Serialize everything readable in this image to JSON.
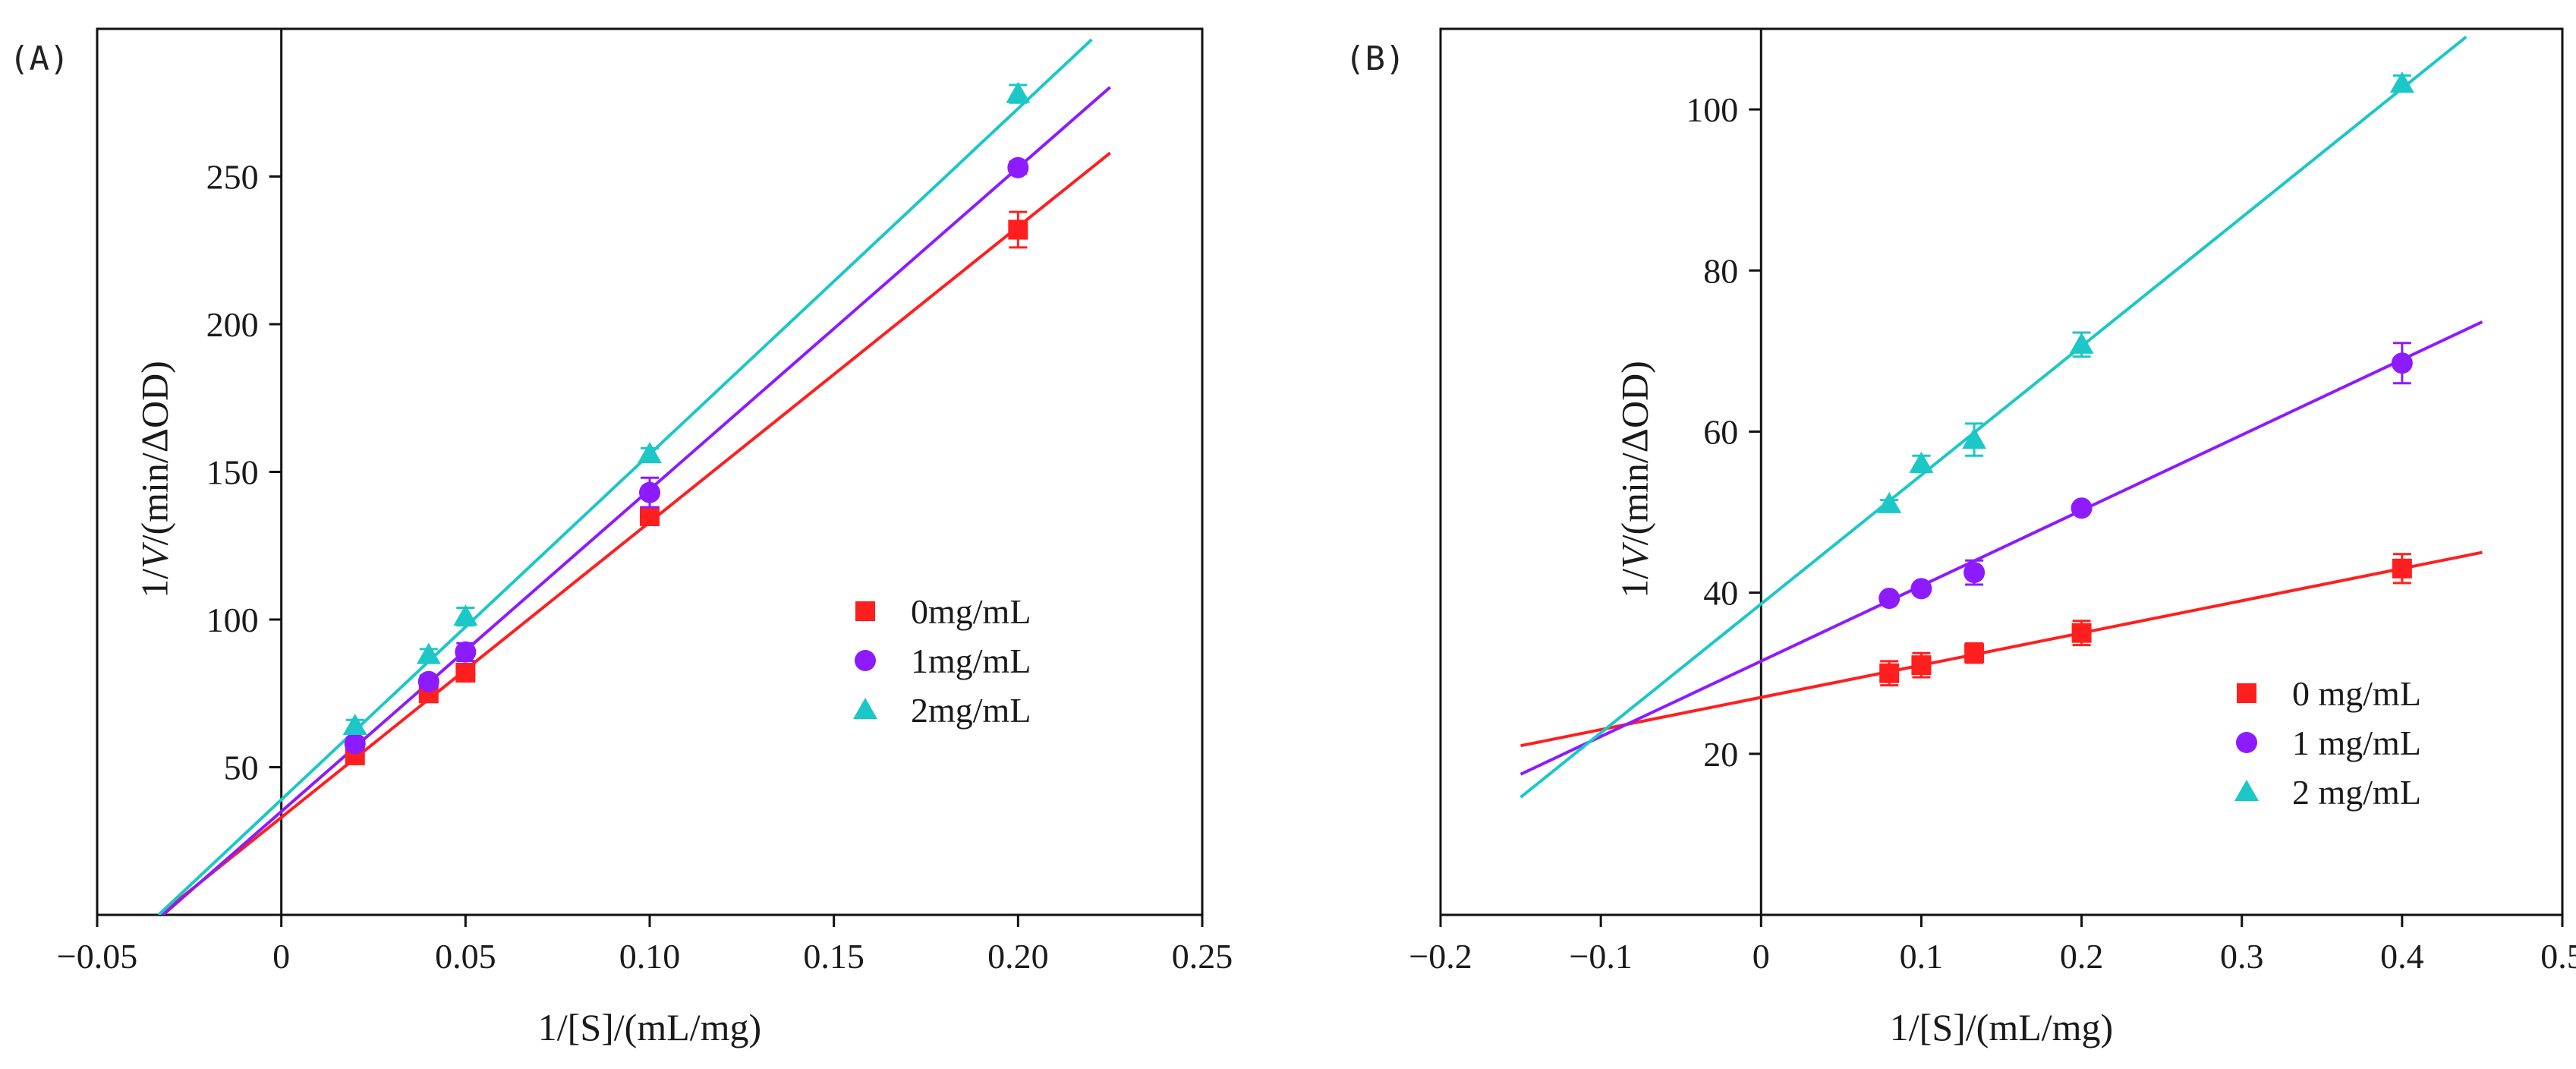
{
  "chart_data": [
    {
      "type": "scatter",
      "panel_label": "(A)",
      "xlabel": "1/[S]/(mL/mg)",
      "ylabel_parts": [
        "1/",
        "V",
        "/(min/ΔOD)"
      ],
      "xlim": [
        -0.05,
        0.25
      ],
      "ylim": [
        0,
        300
      ],
      "xticks": [
        -0.05,
        0,
        0.05,
        0.1,
        0.15,
        0.2,
        0.25
      ],
      "xtick_labels": [
        "−0.05",
        "0",
        "0.05",
        "0.10",
        "0.15",
        "0.20",
        "0.25"
      ],
      "yticks": [
        50,
        100,
        150,
        200,
        250
      ],
      "ytick_labels": [
        "50",
        "100",
        "150",
        "200",
        "250"
      ],
      "x_axis_line_at": 0,
      "legend_position": "right-middle",
      "grid": false,
      "series": [
        {
          "name": "0mg/mL",
          "marker": "square",
          "color": "#ff1f1f",
          "x": [
            0.02,
            0.04,
            0.05,
            0.1,
            0.2
          ],
          "y": [
            54,
            75,
            82,
            135,
            232
          ],
          "error": [
            2,
            2,
            2,
            3,
            6
          ],
          "fit": {
            "slope": 1000,
            "intercept": 33,
            "x_range": [
              -0.0333,
              0.225
            ]
          }
        },
        {
          "name": "1mg/mL",
          "marker": "circle",
          "color": "#8d1bff",
          "x": [
            0.02,
            0.04,
            0.05,
            0.1,
            0.2
          ],
          "y": [
            58,
            79,
            89,
            143,
            253
          ],
          "error": [
            2,
            2,
            3,
            5,
            2
          ],
          "fit": {
            "slope": 1090,
            "intercept": 35,
            "x_range": [
              -0.0333,
              0.225
            ]
          }
        },
        {
          "name": "2mg/mL",
          "marker": "triangle",
          "color": "#1cc7c7",
          "x": [
            0.02,
            0.04,
            0.05,
            0.1,
            0.2
          ],
          "y": [
            64,
            88,
            101,
            156,
            278
          ],
          "error": [
            2,
            2,
            3,
            2,
            3
          ],
          "fit": {
            "slope": 1170,
            "intercept": 39,
            "x_range": [
              -0.0333,
              0.22
            ]
          }
        }
      ]
    },
    {
      "type": "scatter",
      "panel_label": "(B)",
      "xlabel": "1/[S]/(mL/mg)",
      "ylabel_parts": [
        "1/",
        "V",
        "/(min/ΔOD)"
      ],
      "xlim": [
        -0.2,
        0.5
      ],
      "ylim": [
        0,
        110
      ],
      "xticks": [
        -0.2,
        -0.1,
        0,
        0.1,
        0.2,
        0.3,
        0.4,
        0.5
      ],
      "xtick_labels": [
        "−0.2",
        "−0.1",
        "0",
        "0.1",
        "0.2",
        "0.3",
        "0.4",
        "0.5"
      ],
      "yticks": [
        20,
        40,
        60,
        80,
        100
      ],
      "ytick_labels": [
        "20",
        "40",
        "60",
        "80",
        "100"
      ],
      "x_axis_line_at": 0,
      "legend_position": "bottom-right",
      "grid": false,
      "series": [
        {
          "name": "0 mg/mL",
          "marker": "square",
          "color": "#ff1f1f",
          "x": [
            0.08,
            0.1,
            0.133,
            0.2,
            0.4
          ],
          "y": [
            30,
            31,
            32.5,
            35,
            43
          ],
          "error": [
            1.5,
            1.5,
            1.2,
            1.5,
            1.8
          ],
          "fit": {
            "slope": 40,
            "intercept": 27,
            "x_range": [
              -0.15,
              0.45
            ]
          }
        },
        {
          "name": "1 mg/mL",
          "marker": "circle",
          "color": "#8d1bff",
          "x": [
            0.08,
            0.1,
            0.133,
            0.2,
            0.4
          ],
          "y": [
            39.3,
            40.5,
            42.5,
            50.5,
            68.5
          ],
          "error": [
            0.5,
            0.5,
            1.5,
            0.5,
            2.5
          ],
          "fit": {
            "slope": 93.6,
            "intercept": 31.5,
            "x_range": [
              -0.15,
              0.45
            ]
          }
        },
        {
          "name": "2 mg/mL",
          "marker": "triangle",
          "color": "#1cc7c7",
          "x": [
            0.08,
            0.1,
            0.133,
            0.2,
            0.4
          ],
          "y": [
            51,
            56,
            59,
            70.8,
            103.2
          ],
          "error": [
            0.5,
            1,
            2,
            1.5,
            1
          ],
          "fit": {
            "slope": 160,
            "intercept": 38.6,
            "x_range": [
              -0.15,
              0.44
            ]
          }
        }
      ]
    }
  ]
}
